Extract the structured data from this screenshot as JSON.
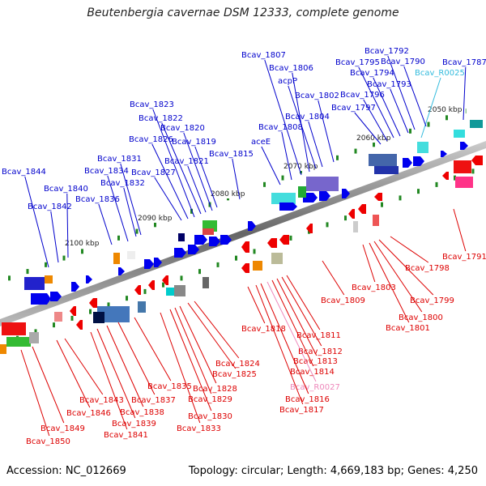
{
  "title": "Beutenbergia cavernae DSM 12333, complete genome",
  "accession": "Accession: NC_012669",
  "summary": "Topology: circular; Length: 4,669,183 bp; Genes: 4,250",
  "colors": {
    "top_label": "#0000cc",
    "bottom_label": "#dd0000",
    "rna_top_label": "#33bbdd",
    "rna_bottom_label": "#ee88bb",
    "backbone": "#888888",
    "tick": "#228822"
  },
  "scale_labels": [
    "2050 kbp",
    "2060 kbp",
    "2070 kbp",
    "2080 kbp",
    "2090 kbp",
    "2100 kbp"
  ],
  "top_genes": [
    "Bcav_1787",
    "Bcav_R0025",
    "Bcav_1790",
    "Bcav_1792",
    "Bcav_1793",
    "Bcav_1794",
    "Bcav_1795",
    "Bcav_1796",
    "Bcav_1797",
    "Bcav_1802",
    "Bcav_1804",
    "acpP",
    "Bcav_1806",
    "Bcav_1807",
    "Bcav_1808",
    "aceE",
    "Bcav_1815",
    "Bcav_1819",
    "Bcav_1820",
    "Bcav_1821",
    "Bcav_1822",
    "Bcav_1823",
    "Bcav_1826",
    "Bcav_1827",
    "Bcav_1831",
    "Bcav_1832",
    "Bcav_1834",
    "Bcav_1836",
    "Bcav_1840",
    "Bcav_1842",
    "Bcav_1844"
  ],
  "bottom_genes": [
    "Bcav_1791",
    "Bcav_1798",
    "Bcav_1799",
    "Bcav_1800",
    "Bcav_1801",
    "Bcav_1803",
    "Bcav_1809",
    "Bcav_1811",
    "Bcav_1812",
    "Bcav_1813",
    "Bcav_1814",
    "Bcav_R0027",
    "Bcav_1816",
    "Bcav_1817",
    "Bcav_1818",
    "Bcav_1824",
    "Bcav_1825",
    "Bcav_1828",
    "Bcav_1829",
    "Bcav_1830",
    "Bcav_1833",
    "Bcav_1835",
    "Bcav_1837",
    "Bcav_1838",
    "Bcav_1839",
    "Bcav_1841",
    "Bcav_1843",
    "Bcav_1846",
    "Bcav_1849",
    "Bcav_1850"
  ]
}
